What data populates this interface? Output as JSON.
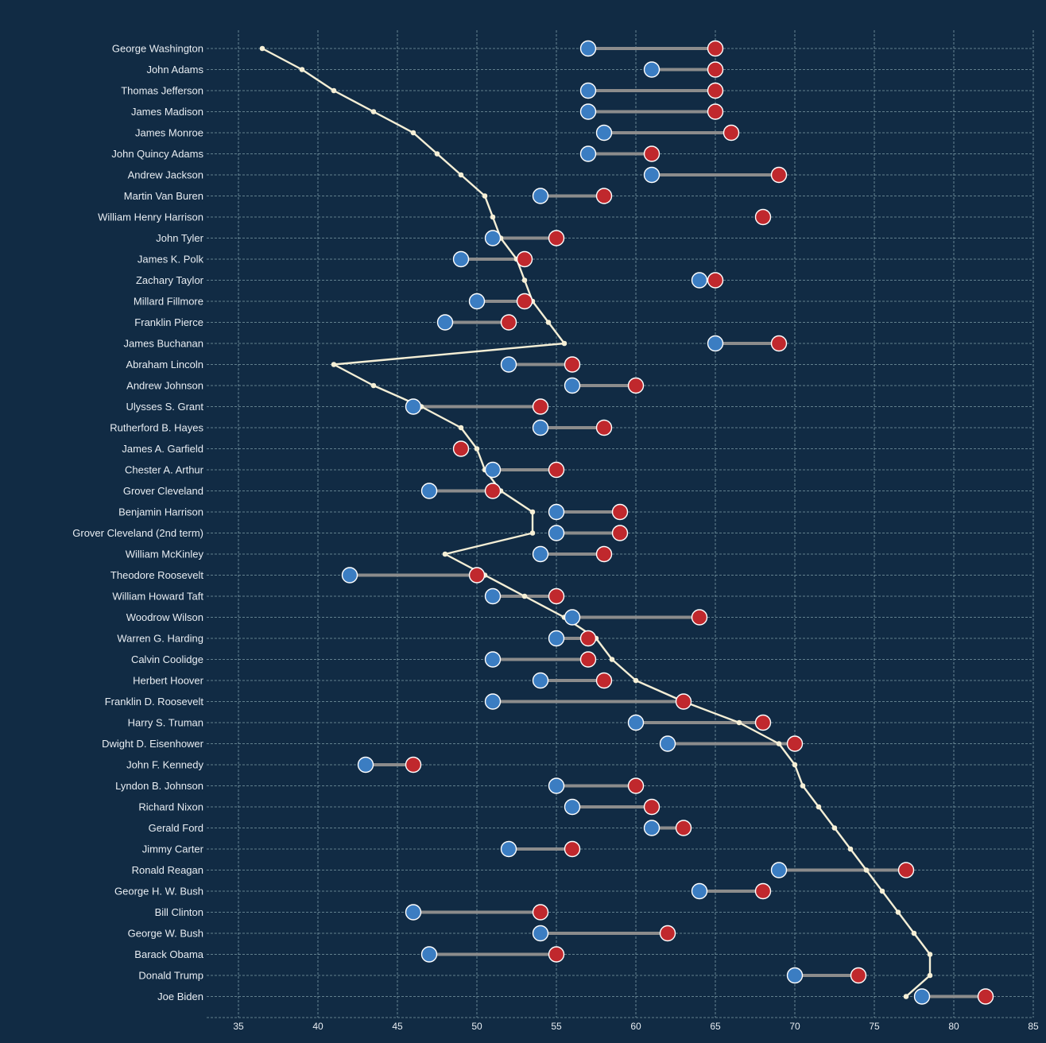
{
  "colors": {
    "background": "#112b44",
    "start_marker": "#3b7dc2",
    "end_marker": "#c0282d",
    "connector": "#8c8c8c",
    "trend": "#f5efd6",
    "grid": "#8fb0b8",
    "text": "#e8edf2"
  },
  "chart_data": {
    "type": "dumbbell",
    "title": "",
    "xlabel": "",
    "ylabel": "",
    "xlim": [
      33,
      85
    ],
    "xticks": [
      35,
      40,
      45,
      50,
      55,
      60,
      65,
      70,
      75,
      80,
      85
    ],
    "grid": true,
    "categories": [
      "George Washington",
      "John Adams",
      "Thomas Jefferson",
      "James Madison",
      "James Monroe",
      "John Quincy Adams",
      "Andrew Jackson",
      "Martin Van Buren",
      "William Henry Harrison",
      "John Tyler",
      "James K. Polk",
      "Zachary Taylor",
      "Millard Fillmore",
      "Franklin Pierce",
      "James Buchanan",
      "Abraham Lincoln",
      "Andrew Johnson",
      "Ulysses S. Grant",
      "Rutherford B. Hayes",
      "James A. Garfield",
      "Chester A. Arthur",
      "Grover Cleveland",
      "Benjamin Harrison",
      "Grover Cleveland (2nd term)",
      "William McKinley",
      "Theodore Roosevelt",
      "William Howard Taft",
      "Woodrow Wilson",
      "Warren G. Harding",
      "Calvin Coolidge",
      "Herbert Hoover",
      "Franklin D. Roosevelt",
      "Harry S. Truman",
      "Dwight D. Eisenhower",
      "John F. Kennedy",
      "Lyndon B. Johnson",
      "Richard Nixon",
      "Gerald Ford",
      "Jimmy Carter",
      "Ronald Reagan",
      "George H. W. Bush",
      "Bill Clinton",
      "George W. Bush",
      "Barack Obama",
      "Donald Trump",
      "Joe Biden"
    ],
    "series": [
      {
        "role": "start",
        "values": [
          57,
          61,
          57,
          57,
          58,
          57,
          61,
          54,
          68,
          51,
          49,
          64,
          50,
          48,
          65,
          52,
          56,
          46,
          54,
          49,
          51,
          47,
          55,
          55,
          54,
          42,
          51,
          56,
          55,
          51,
          54,
          51,
          60,
          62,
          43,
          55,
          56,
          61,
          52,
          69,
          64,
          46,
          54,
          47,
          70,
          78
        ]
      },
      {
        "role": "end",
        "values": [
          65,
          65,
          65,
          65,
          66,
          61,
          69,
          58,
          68,
          55,
          53,
          65,
          53,
          52,
          69,
          56,
          60,
          54,
          58,
          49,
          55,
          51,
          59,
          59,
          58,
          50,
          55,
          64,
          57,
          57,
          58,
          63,
          68,
          70,
          46,
          60,
          61,
          63,
          56,
          77,
          68,
          54,
          62,
          55,
          74,
          82
        ]
      },
      {
        "role": "trend",
        "values": [
          36.5,
          39,
          41,
          43.5,
          46,
          47.5,
          49,
          50.5,
          51,
          51.5,
          52.5,
          53,
          53.5,
          54.5,
          55.5,
          41,
          43.5,
          46.5,
          49,
          50,
          50.5,
          51.5,
          53.5,
          53.5,
          48,
          50.5,
          53,
          55.5,
          57.5,
          58.5,
          60,
          63,
          66.5,
          69,
          70,
          70.5,
          71.5,
          72.5,
          73.5,
          74.5,
          75.5,
          76.5,
          77.5,
          78.5,
          78.5,
          77
        ]
      }
    ]
  }
}
